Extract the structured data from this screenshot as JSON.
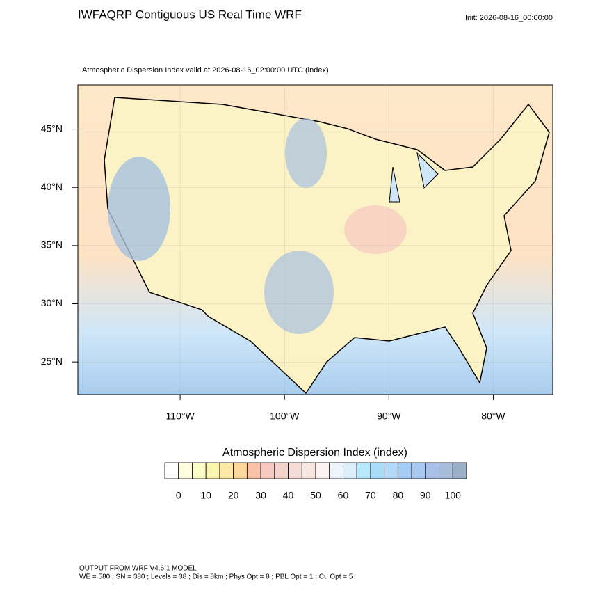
{
  "header": {
    "title": "IWFAQRP Contiguous US Real Time WRF",
    "init": "Init: 2026-08-16_00:00:00",
    "subtitle": "Atmospheric Dispersion Index valid at 2026-08-16_02:00:00 UTC   (index)"
  },
  "map": {
    "xlim": [
      -119.8,
      -74.3
    ],
    "ylim": [
      22.2,
      48.8
    ],
    "xticks": [
      {
        "value": -110,
        "label": "110°W"
      },
      {
        "value": -100,
        "label": "100°W"
      },
      {
        "value": -90,
        "label": "90°W"
      },
      {
        "value": -80,
        "label": "80°W"
      }
    ],
    "yticks": [
      {
        "value": 25,
        "label": "25°N"
      },
      {
        "value": 30,
        "label": "30°N"
      },
      {
        "value": 35,
        "label": "35°N"
      },
      {
        "value": 40,
        "label": "40°N"
      },
      {
        "value": 45,
        "label": "45°N"
      }
    ]
  },
  "colorbar": {
    "title": "Atmospheric Dispersion Index  (index)",
    "ticks": [
      0,
      10,
      20,
      30,
      40,
      50,
      60,
      70,
      80,
      90,
      100
    ],
    "colors": [
      "#ffffff",
      "#fffde0",
      "#fcfcc8",
      "#fbf5b0",
      "#fde8a4",
      "#fdd89c",
      "#f9c2a8",
      "#f5c8c0",
      "#f3d2cc",
      "#f6dcd6",
      "#f8e6e2",
      "#fdf2f2",
      "#eef4fc",
      "#dceefb",
      "#b8e8fb",
      "#a8dcf8",
      "#b4d8f8",
      "#a4ccf4",
      "#a8c8f0",
      "#a8c0e8",
      "#a6bcd8",
      "#9ab0c8"
    ]
  },
  "footer": {
    "line1": "OUTPUT FROM WRF V4.6.1 MODEL",
    "line2": "WE = 580 ; SN = 380 ; Levels = 38 ; Dis = 8km ; Phys Opt = 8 ; PBL Opt = 1 ; Cu Opt = 5"
  }
}
